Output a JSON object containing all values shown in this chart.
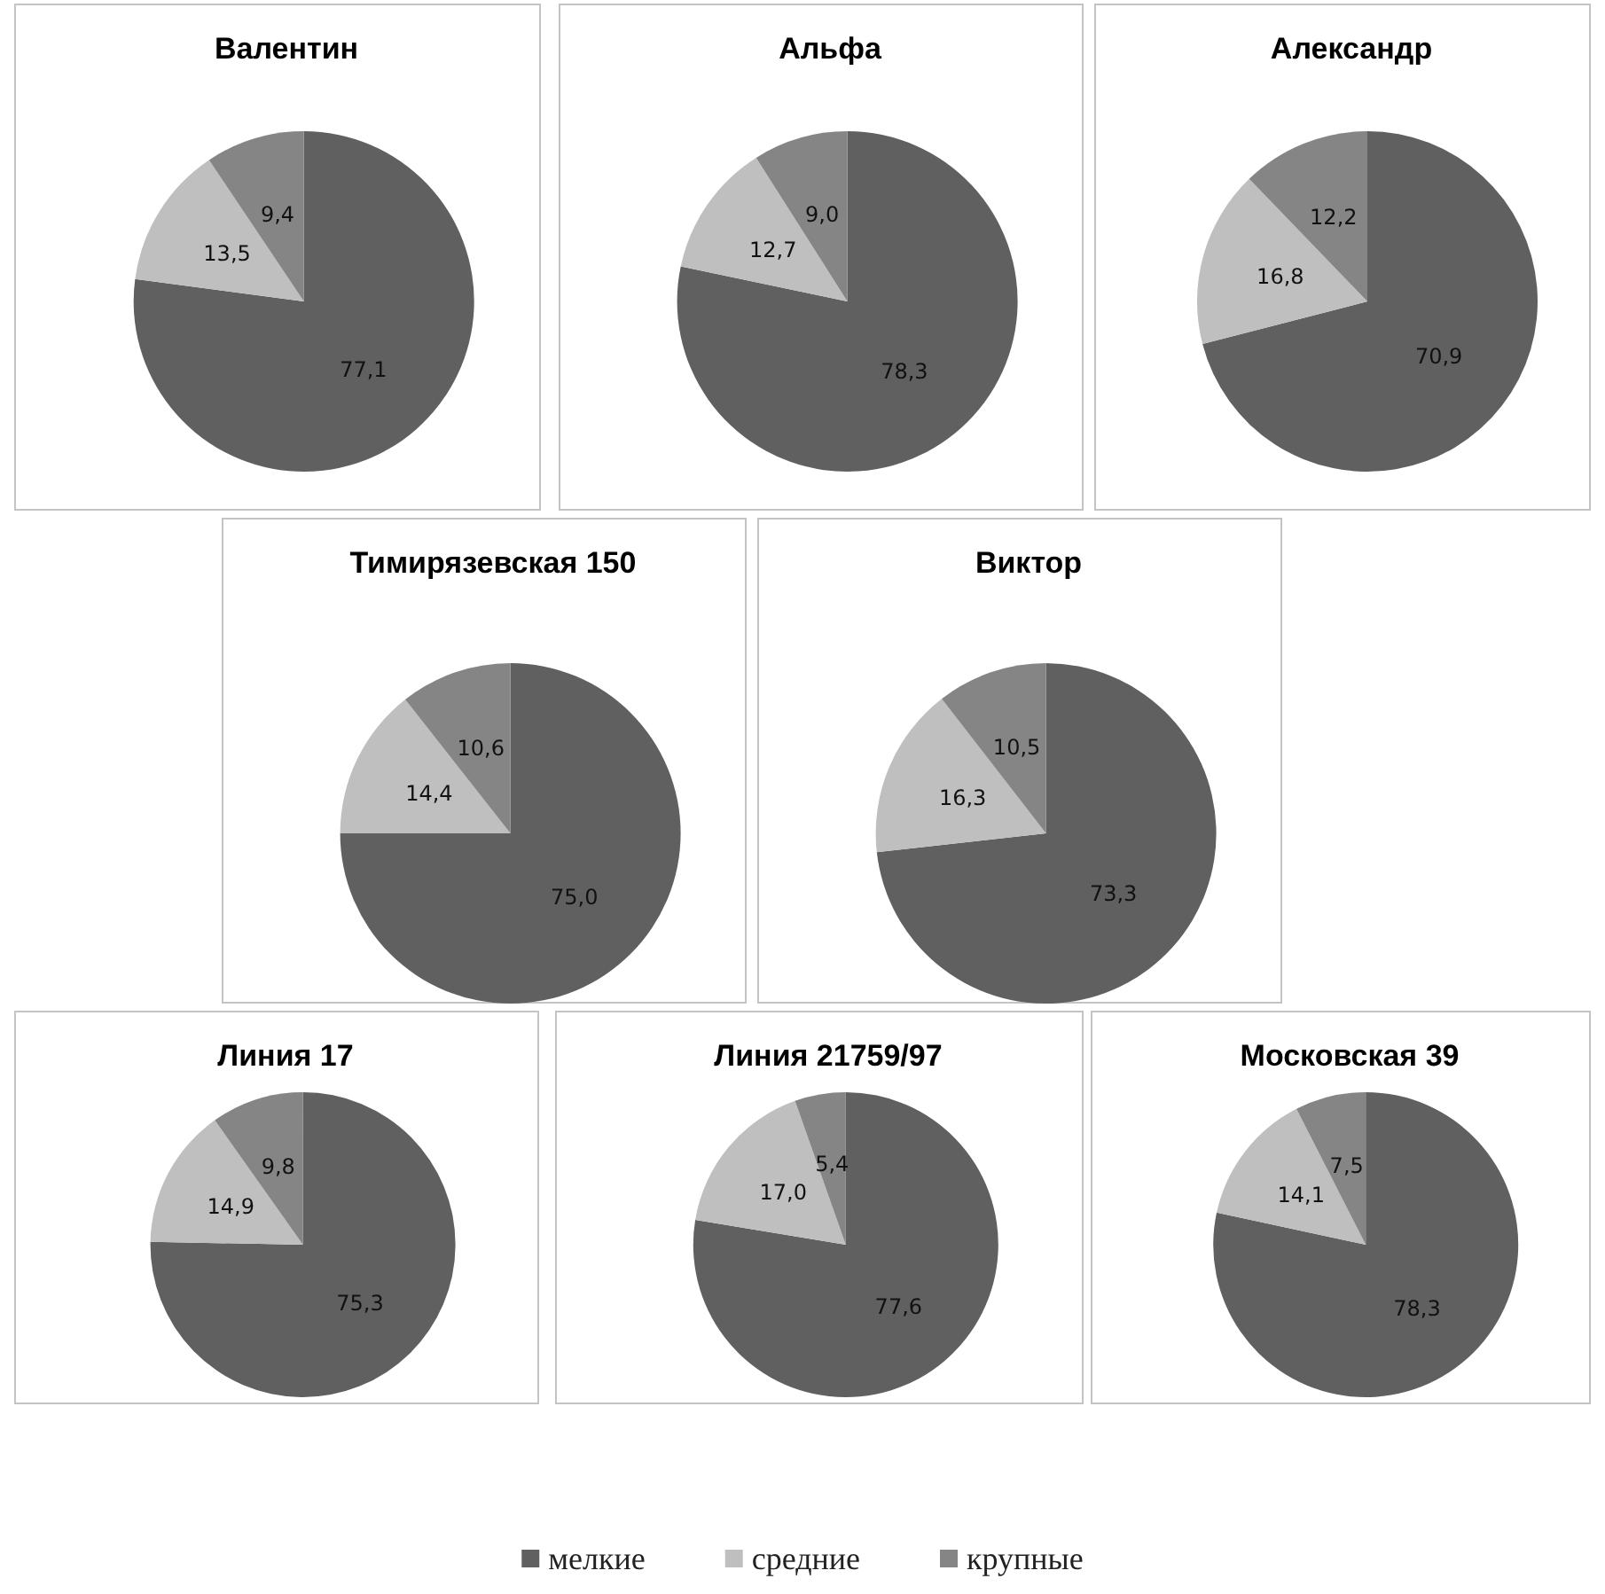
{
  "chart_data": [
    {
      "type": "pie",
      "title": "Валентин",
      "categories": [
        null,
        null,
        null
      ],
      "values": [
        77.1,
        13.5,
        9.4
      ],
      "value_labels": [
        "77,1",
        "13,5",
        "9,4"
      ],
      "colors": [
        "#606060",
        "#bfbfbf",
        "#858585"
      ]
    },
    {
      "type": "pie",
      "title": "Альфа",
      "categories": [
        null,
        null,
        null
      ],
      "values": [
        78.3,
        12.7,
        9.0
      ],
      "value_labels": [
        "78,3",
        "12,7",
        "9,0"
      ],
      "colors": [
        "#606060",
        "#bfbfbf",
        "#858585"
      ]
    },
    {
      "type": "pie",
      "title": "Александр",
      "categories": [
        null,
        null,
        null
      ],
      "values": [
        70.9,
        16.8,
        12.2
      ],
      "value_labels": [
        "70,9",
        "16,8",
        "12,2"
      ],
      "colors": [
        "#606060",
        "#bfbfbf",
        "#858585"
      ]
    },
    {
      "type": "pie",
      "title": "Тимирязевская 150",
      "categories": [
        null,
        null,
        null
      ],
      "values": [
        75.0,
        14.4,
        10.6
      ],
      "value_labels": [
        "75,0",
        "14,4",
        "10,6"
      ],
      "colors": [
        "#606060",
        "#bfbfbf",
        "#858585"
      ]
    },
    {
      "type": "pie",
      "title": "Виктор",
      "categories": [
        null,
        null,
        null
      ],
      "values": [
        73.3,
        16.3,
        10.5
      ],
      "value_labels": [
        "73,3",
        "16,3",
        "10,5"
      ],
      "colors": [
        "#606060",
        "#bfbfbf",
        "#858585"
      ]
    },
    {
      "type": "pie",
      "title": "Линия 17",
      "categories": [
        null,
        null,
        null
      ],
      "values": [
        75.3,
        14.9,
        9.8
      ],
      "value_labels": [
        "75,3",
        "14,9",
        "9,8"
      ],
      "colors": [
        "#606060",
        "#bfbfbf",
        "#858585"
      ]
    },
    {
      "type": "pie",
      "title": "Линия 21759/97",
      "categories": [
        null,
        null,
        null
      ],
      "values": [
        77.6,
        17.0,
        5.4
      ],
      "value_labels": [
        "77,6",
        "17,0",
        "5,4"
      ],
      "colors": [
        "#606060",
        "#bfbfbf",
        "#858585"
      ]
    },
    {
      "type": "pie",
      "title": "Московская 39",
      "categories": [
        "мелкие",
        "средние",
        "крупные"
      ],
      "values": [
        78.3,
        14.1,
        7.5
      ],
      "value_labels": [
        "78,3",
        "14,1",
        "7,5"
      ],
      "colors": [
        "#606060",
        "#bfbfbf",
        "#858585"
      ],
      "legend": "bottom"
    }
  ]
}
